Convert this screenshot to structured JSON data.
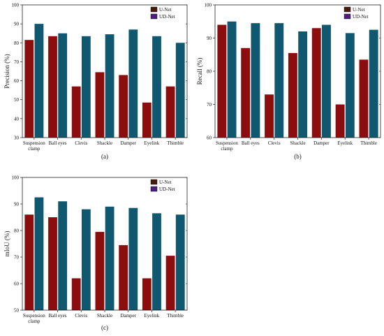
{
  "colors": {
    "unet": "#8b0d0d",
    "udnet": "#0f5870",
    "unet_legend": "#4a1a0a",
    "udnet_legend": "#4b1e7a"
  },
  "chart_data": [
    {
      "type": "bar",
      "panel_label": "(a)",
      "ylabel": "Precision (%)",
      "ylim": [
        30,
        100
      ],
      "yticks": [
        30,
        40,
        50,
        60,
        70,
        80,
        90,
        100
      ],
      "categories": [
        "Suspension clamp",
        "Ball eyes",
        "Clevis",
        "Shackle",
        "Damper",
        "Eyelink",
        "Thimble"
      ],
      "series": [
        {
          "name": "U-Net",
          "values": [
            81.5,
            83.5,
            57,
            64.5,
            63,
            48.5,
            57
          ]
        },
        {
          "name": "UD-Net",
          "values": [
            90,
            85,
            83.5,
            84.5,
            87,
            83.5,
            80
          ]
        }
      ],
      "legend": "top-right",
      "grid": false
    },
    {
      "type": "bar",
      "panel_label": "(b)",
      "ylabel": "Recall (%)",
      "ylim": [
        60,
        100
      ],
      "yticks": [
        60,
        70,
        80,
        90,
        100
      ],
      "categories": [
        "Suspension clamp",
        "Ball eyes",
        "Clevis",
        "Shackle",
        "Damper",
        "Eyelink",
        "Thimble"
      ],
      "series": [
        {
          "name": "U-Net",
          "values": [
            94,
            87,
            73,
            85.5,
            93,
            70,
            83.5
          ]
        },
        {
          "name": "UD-Net",
          "values": [
            95,
            94.5,
            94.5,
            92,
            94,
            91.5,
            92.5
          ]
        }
      ],
      "legend": "top-right",
      "grid": false
    },
    {
      "type": "bar",
      "panel_label": "(c)",
      "ylabel": "mIoU (%)",
      "ylim": [
        50,
        100
      ],
      "yticks": [
        50,
        60,
        70,
        80,
        90,
        100
      ],
      "categories": [
        "Suspension clamp",
        "Ball eyes",
        "Clevis",
        "Shackle",
        "Damper",
        "Eyelink",
        "Thimble"
      ],
      "series": [
        {
          "name": "U-Net",
          "values": [
            86,
            85,
            62,
            79.5,
            74.5,
            62,
            70.5
          ]
        },
        {
          "name": "UD-Net",
          "values": [
            92.5,
            91,
            88,
            89,
            88.5,
            86.5,
            86
          ]
        }
      ],
      "legend": "top-right",
      "grid": false
    }
  ]
}
